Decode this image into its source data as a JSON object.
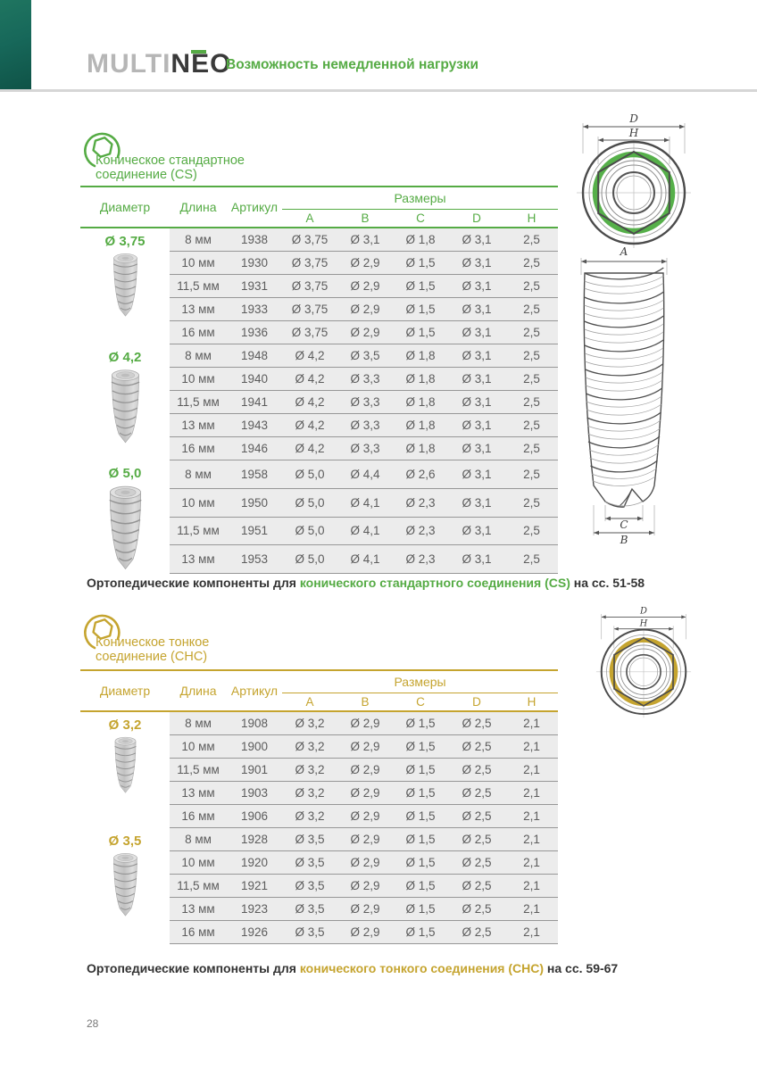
{
  "colors": {
    "green": "#55ab44",
    "gold": "#c5a42f",
    "teal": "#17685a",
    "row_bg": "#ececec"
  },
  "header": {
    "logo_multi": "MULTI",
    "logo_neo": "NEO",
    "tagline": "Возможность немедленной нагрузки"
  },
  "page": {
    "number": "28"
  },
  "drawing_labels": {
    "d": "D",
    "h": "H",
    "a": "A",
    "b": "B",
    "c": "C"
  },
  "sections": [
    {
      "id": "cs",
      "title_line1": "Коническое стандартное",
      "title_line2": "соединение (CS)",
      "note_prefix": "Ортопедические компоненты для ",
      "note_highlight": "конического стандартного соединения (CS)",
      "note_suffix": " на сс. 51-58",
      "table": {
        "col_diameter": "Диаметр",
        "col_length": "Длина",
        "col_article": "Артикул",
        "col_sizes": "Размеры",
        "size_cols": [
          "A",
          "B",
          "C",
          "D",
          "H"
        ],
        "groups": [
          {
            "diameter": "Ø 3,75",
            "rows": [
              [
                "8 мм",
                "1938",
                "Ø 3,75",
                "Ø 3,1",
                "Ø 1,8",
                "Ø 3,1",
                "2,5"
              ],
              [
                "10 мм",
                "1930",
                "Ø 3,75",
                "Ø 2,9",
                "Ø 1,5",
                "Ø 3,1",
                "2,5"
              ],
              [
                "11,5 мм",
                "1931",
                "Ø 3,75",
                "Ø 2,9",
                "Ø 1,5",
                "Ø 3,1",
                "2,5"
              ],
              [
                "13 мм",
                "1933",
                "Ø 3,75",
                "Ø 2,9",
                "Ø 1,5",
                "Ø 3,1",
                "2,5"
              ],
              [
                "16 мм",
                "1936",
                "Ø 3,75",
                "Ø 2,9",
                "Ø 1,5",
                "Ø 3,1",
                "2,5"
              ]
            ]
          },
          {
            "diameter": "Ø 4,2",
            "rows": [
              [
                "8 мм",
                "1948",
                "Ø 4,2",
                "Ø 3,5",
                "Ø 1,8",
                "Ø 3,1",
                "2,5"
              ],
              [
                "10 мм",
                "1940",
                "Ø 4,2",
                "Ø 3,3",
                "Ø 1,8",
                "Ø 3,1",
                "2,5"
              ],
              [
                "11,5 мм",
                "1941",
                "Ø 4,2",
                "Ø 3,3",
                "Ø 1,8",
                "Ø 3,1",
                "2,5"
              ],
              [
                "13 мм",
                "1943",
                "Ø 4,2",
                "Ø 3,3",
                "Ø 1,8",
                "Ø 3,1",
                "2,5"
              ],
              [
                "16 мм",
                "1946",
                "Ø 4,2",
                "Ø 3,3",
                "Ø 1,8",
                "Ø 3,1",
                "2,5"
              ]
            ]
          },
          {
            "diameter": "Ø 5,0",
            "rows": [
              [
                "8 мм",
                "1958",
                "Ø 5,0",
                "Ø 4,4",
                "Ø 2,6",
                "Ø 3,1",
                "2,5"
              ],
              [
                "10 мм",
                "1950",
                "Ø 5,0",
                "Ø 4,1",
                "Ø 2,3",
                "Ø 3,1",
                "2,5"
              ],
              [
                "11,5 мм",
                "1951",
                "Ø 5,0",
                "Ø 4,1",
                "Ø 2,3",
                "Ø 3,1",
                "2,5"
              ],
              [
                "13 мм",
                "1953",
                "Ø 5,0",
                "Ø 4,1",
                "Ø 2,3",
                "Ø 3,1",
                "2,5"
              ]
            ]
          }
        ]
      }
    },
    {
      "id": "chc",
      "title_line1": "Коническое тонкое",
      "title_line2": "соединение (СНС)",
      "note_prefix": "Ортопедические компоненты для ",
      "note_highlight": "конического тонкого соединения (СНС)",
      "note_suffix": " на сс. 59-67",
      "table": {
        "col_diameter": "Диаметр",
        "col_length": "Длина",
        "col_article": "Артикул",
        "col_sizes": "Размеры",
        "size_cols": [
          "A",
          "B",
          "C",
          "D",
          "H"
        ],
        "groups": [
          {
            "diameter": "Ø 3,2",
            "rows": [
              [
                "8 мм",
                "1908",
                "Ø 3,2",
                "Ø 2,9",
                "Ø 1,5",
                "Ø 2,5",
                "2,1"
              ],
              [
                "10 мм",
                "1900",
                "Ø 3,2",
                "Ø 2,9",
                "Ø 1,5",
                "Ø 2,5",
                "2,1"
              ],
              [
                "11,5 мм",
                "1901",
                "Ø 3,2",
                "Ø 2,9",
                "Ø 1,5",
                "Ø 2,5",
                "2,1"
              ],
              [
                "13 мм",
                "1903",
                "Ø 3,2",
                "Ø 2,9",
                "Ø 1,5",
                "Ø 2,5",
                "2,1"
              ],
              [
                "16 мм",
                "1906",
                "Ø 3,2",
                "Ø 2,9",
                "Ø 1,5",
                "Ø 2,5",
                "2,1"
              ]
            ]
          },
          {
            "diameter": "Ø 3,5",
            "rows": [
              [
                "8 мм",
                "1928",
                "Ø 3,5",
                "Ø 2,9",
                "Ø 1,5",
                "Ø 2,5",
                "2,1"
              ],
              [
                "10 мм",
                "1920",
                "Ø 3,5",
                "Ø 2,9",
                "Ø 1,5",
                "Ø 2,5",
                "2,1"
              ],
              [
                "11,5 мм",
                "1921",
                "Ø 3,5",
                "Ø 2,9",
                "Ø 1,5",
                "Ø 2,5",
                "2,1"
              ],
              [
                "13 мм",
                "1923",
                "Ø 3,5",
                "Ø 2,9",
                "Ø 1,5",
                "Ø 2,5",
                "2,1"
              ],
              [
                "16 мм",
                "1926",
                "Ø 3,5",
                "Ø 2,9",
                "Ø 1,5",
                "Ø 2,5",
                "2,1"
              ]
            ]
          }
        ]
      }
    }
  ]
}
